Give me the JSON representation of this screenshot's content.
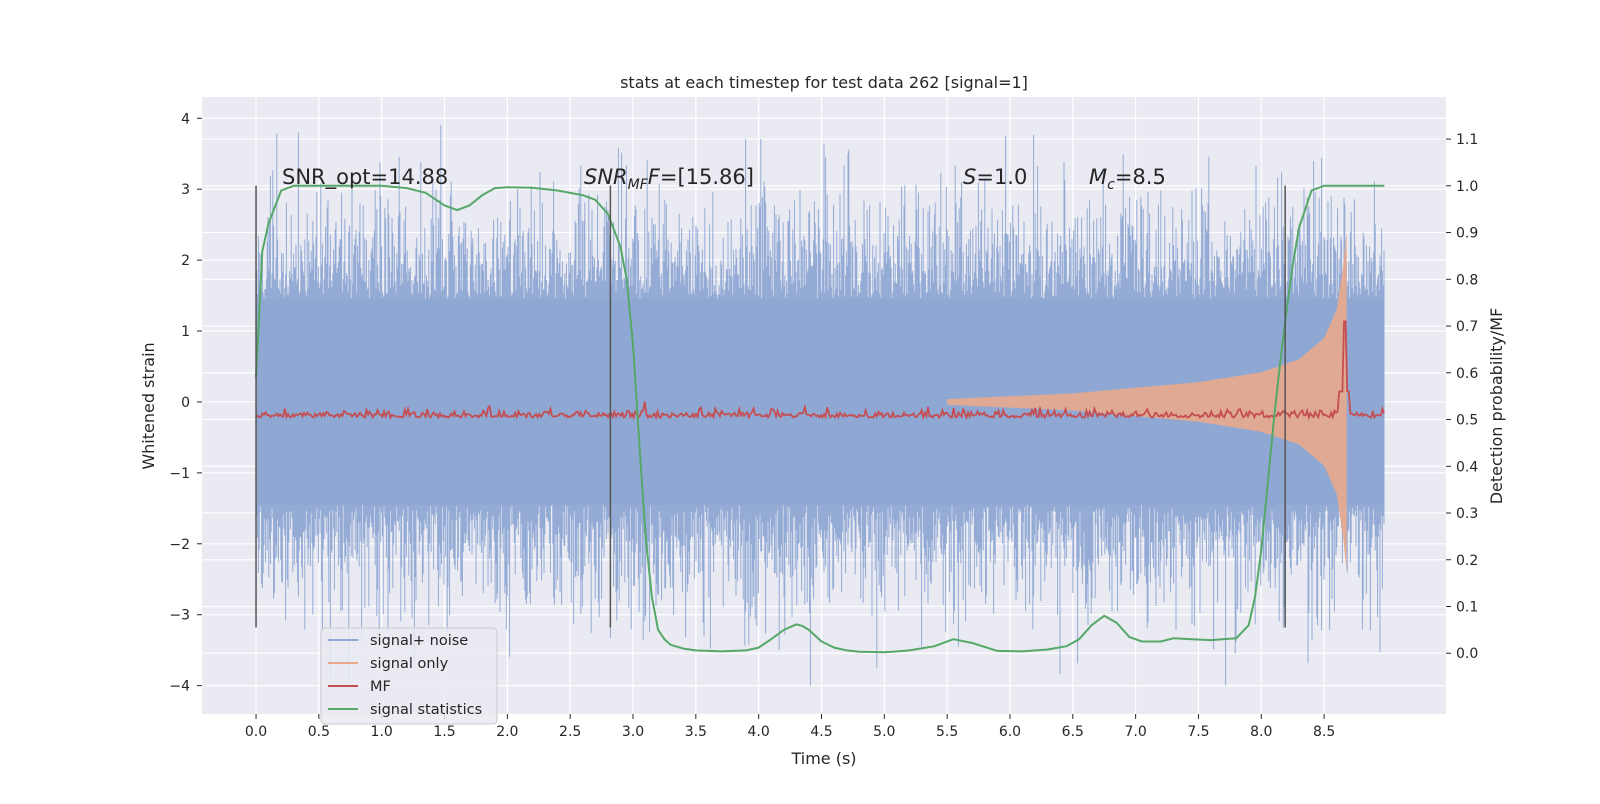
{
  "chart_data": {
    "type": "line",
    "title": "stats at each timestep for test data 262 [signal=1]",
    "xlabel": "Time (s)",
    "ylabel_left": "Whitened strain",
    "ylabel_right": "Detection probability/MF",
    "xlim": [
      -0.43,
      9.47
    ],
    "ylim_left": [
      -4.4,
      4.3
    ],
    "ylim_right": [
      -0.13,
      1.19
    ],
    "grid": true,
    "legend_position": "lower-left",
    "xticks": [
      0.0,
      0.5,
      1.0,
      1.5,
      2.0,
      2.5,
      3.0,
      3.5,
      4.0,
      4.5,
      5.0,
      5.5,
      6.0,
      6.5,
      7.0,
      7.5,
      8.0,
      8.5
    ],
    "xtick_labels": [
      "0.0",
      "0.5",
      "1.0",
      "1.5",
      "2.0",
      "2.5",
      "3.0",
      "3.5",
      "4.0",
      "4.5",
      "5.0",
      "5.5",
      "6.0",
      "6.5",
      "7.0",
      "7.5",
      "8.0",
      "8.5"
    ],
    "yticks_left": [
      4,
      3,
      2,
      1,
      0,
      -1,
      -2,
      -3,
      -4
    ],
    "yticks_left_labels": [
      "4",
      "3",
      "2",
      "1",
      "0",
      "−1",
      "−2",
      "−3",
      "−4"
    ],
    "yticks_right": [
      1.1,
      1.0,
      0.9,
      0.8,
      0.7,
      0.6,
      0.5,
      0.4,
      0.3,
      0.2,
      0.1,
      0.0
    ],
    "yticks_right_labels": [
      "1.1",
      "1.0",
      "0.9",
      "0.8",
      "0.7",
      "0.6",
      "0.5",
      "0.4",
      "0.3",
      "0.2",
      "0.1",
      "0.0"
    ],
    "annotations": {
      "snr_opt": "SNR_opt=14.88",
      "snr_mf_main": "SNR",
      "snr_mf_sub": "MF",
      "snr_mf_rest": "F=[15.86]",
      "s_main": "S",
      "s_rest": "=1.0",
      "mc_main": "M",
      "mc_sub": "c",
      "mc_rest": "=8.5"
    },
    "vertical_lines_x": [
      0.0,
      2.82,
      8.19
    ],
    "series": [
      {
        "name": "signal+ noise",
        "color": "#8fa8d3",
        "axis": "left",
        "time_range": [
          0.0,
          8.98
        ],
        "envelope_max": 3.9,
        "envelope_min": -4.0
      },
      {
        "name": "signal only",
        "color": "#e8a98c",
        "axis": "left",
        "description_points": {
          "t": [
            5.5,
            6.5,
            7.5,
            8.0,
            8.3,
            8.5,
            8.6,
            8.65,
            8.68
          ],
          "amplitude": [
            0.04,
            0.12,
            0.28,
            0.42,
            0.6,
            0.9,
            1.3,
            1.9,
            2.4
          ]
        }
      },
      {
        "name": "MF",
        "color": "#c44e52",
        "axis": "right",
        "baseline": 0.5,
        "peak": {
          "t": 8.66,
          "value": 0.71
        }
      },
      {
        "name": "signal statistics",
        "color": "#55a868",
        "axis": "right",
        "t": [
          0.0,
          0.05,
          0.1,
          0.2,
          0.3,
          0.5,
          0.8,
          1.0,
          1.2,
          1.35,
          1.5,
          1.6,
          1.7,
          1.8,
          1.9,
          2.0,
          2.2,
          2.4,
          2.6,
          2.7,
          2.8,
          2.9,
          2.95,
          3.0,
          3.05,
          3.1,
          3.15,
          3.2,
          3.25,
          3.3,
          3.4,
          3.5,
          3.7,
          3.9,
          4.0,
          4.1,
          4.2,
          4.3,
          4.35,
          4.4,
          4.5,
          4.6,
          4.7,
          4.8,
          5.0,
          5.2,
          5.4,
          5.55,
          5.7,
          5.9,
          6.1,
          6.3,
          6.45,
          6.55,
          6.65,
          6.75,
          6.85,
          6.95,
          7.05,
          7.2,
          7.3,
          7.45,
          7.6,
          7.8,
          7.9,
          7.95,
          8.0,
          8.05,
          8.1,
          8.15,
          8.2,
          8.25,
          8.3,
          8.35,
          8.4,
          8.5,
          8.6,
          8.8,
          8.98
        ],
        "values": [
          0.59,
          0.86,
          0.92,
          0.99,
          1.0,
          1.0,
          1.0,
          1.0,
          0.995,
          0.985,
          0.958,
          0.948,
          0.958,
          0.98,
          0.995,
          0.997,
          0.996,
          0.99,
          0.98,
          0.97,
          0.94,
          0.87,
          0.8,
          0.66,
          0.45,
          0.25,
          0.12,
          0.05,
          0.03,
          0.018,
          0.01,
          0.006,
          0.004,
          0.006,
          0.012,
          0.03,
          0.05,
          0.062,
          0.058,
          0.05,
          0.025,
          0.012,
          0.006,
          0.003,
          0.002,
          0.006,
          0.015,
          0.03,
          0.022,
          0.005,
          0.004,
          0.008,
          0.015,
          0.03,
          0.06,
          0.08,
          0.065,
          0.035,
          0.025,
          0.025,
          0.032,
          0.03,
          0.028,
          0.032,
          0.06,
          0.12,
          0.22,
          0.36,
          0.5,
          0.62,
          0.73,
          0.83,
          0.91,
          0.95,
          0.99,
          1.0,
          1.0,
          1.0,
          1.0
        ]
      }
    ],
    "legend": [
      "signal+ noise",
      "signal only",
      "MF",
      "signal statistics"
    ]
  }
}
